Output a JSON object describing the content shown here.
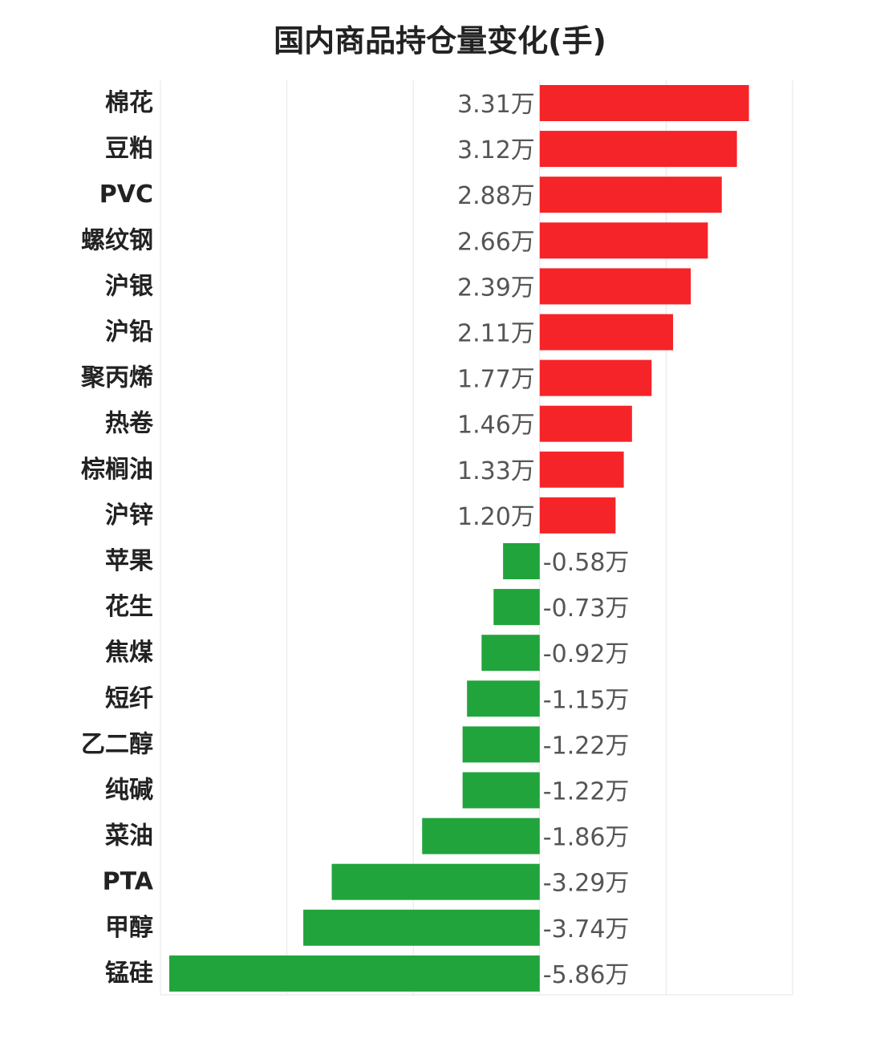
{
  "chart_data": {
    "type": "bar",
    "orientation": "horizontal",
    "title": "国内商品持仓量变化(手)",
    "xlabel": "",
    "ylabel": "",
    "unit": "万",
    "xlim": [
      -6,
      4
    ],
    "grid": true,
    "categories": [
      "棉花",
      "豆粕",
      "PVC",
      "螺纹钢",
      "沪银",
      "沪铅",
      "聚丙烯",
      "热卷",
      "棕榈油",
      "沪锌",
      "苹果",
      "花生",
      "焦煤",
      "短纤",
      "乙二醇",
      "纯碱",
      "菜油",
      "PTA",
      "甲醇",
      "锰硅"
    ],
    "values": [
      3.31,
      3.12,
      2.88,
      2.66,
      2.39,
      2.11,
      1.77,
      1.46,
      1.33,
      1.2,
      -0.58,
      -0.73,
      -0.92,
      -1.15,
      -1.22,
      -1.22,
      -1.86,
      -3.29,
      -3.74,
      -5.86
    ],
    "value_labels": [
      "3.31万",
      "3.12万",
      "2.88万",
      "2.66万",
      "2.39万",
      "2.11万",
      "1.77万",
      "1.46万",
      "1.33万",
      "1.20万",
      "-0.58万",
      "-0.73万",
      "-0.92万",
      "-1.15万",
      "-1.22万",
      "-1.22万",
      "-1.86万",
      "-3.29万",
      "-3.74万",
      "-5.86万"
    ],
    "colors": {
      "positive": "#f52428",
      "negative": "#21a43c",
      "grid": "#e6e6e6"
    }
  }
}
